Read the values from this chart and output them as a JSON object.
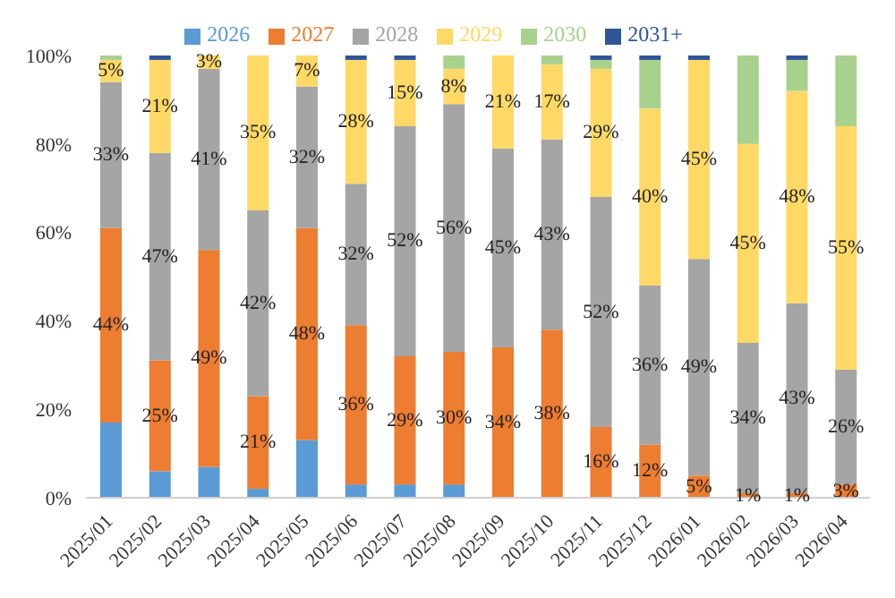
{
  "chart_data": {
    "type": "bar",
    "stacked": true,
    "categories": [
      "2025/01",
      "2025/02",
      "2025/03",
      "2025/04",
      "2025/05",
      "2025/06",
      "2025/07",
      "2025/08",
      "2025/09",
      "2025/10",
      "2025/11",
      "2025/12",
      "2026/01",
      "2026/02",
      "2026/03",
      "2026/04"
    ],
    "series": [
      {
        "name": "2026",
        "color": "#5b9bd5",
        "values": [
          17,
          6,
          7,
          2,
          13,
          3,
          3,
          3,
          0,
          0,
          0,
          0,
          0,
          0,
          0,
          0
        ],
        "value_labels": [
          null,
          null,
          null,
          null,
          null,
          null,
          null,
          null,
          null,
          null,
          null,
          null,
          null,
          null,
          null,
          null
        ]
      },
      {
        "name": "2027",
        "color": "#ed7d31",
        "values": [
          44,
          25,
          49,
          21,
          48,
          36,
          29,
          30,
          34,
          38,
          16,
          12,
          5,
          1,
          1,
          3
        ],
        "value_labels": [
          "44%",
          "25%",
          "49%",
          "21%",
          "48%",
          "36%",
          "29%",
          "30%",
          "34%",
          "38%",
          "16%",
          "12%",
          "5%",
          "1%",
          "1%",
          "3%"
        ]
      },
      {
        "name": "2028",
        "color": "#a5a5a5",
        "values": [
          33,
          47,
          41,
          42,
          32,
          32,
          52,
          56,
          45,
          43,
          52,
          36,
          49,
          34,
          43,
          26
        ],
        "value_labels": [
          "33%",
          "47%",
          "41%",
          "42%",
          "32%",
          "32%",
          "52%",
          "56%",
          "45%",
          "43%",
          "52%",
          "36%",
          "49%",
          "34%",
          "43%",
          "26%"
        ]
      },
      {
        "name": "2029",
        "color": "#ffd966",
        "values": [
          5,
          21,
          3,
          35,
          7,
          28,
          15,
          8,
          21,
          17,
          29,
          40,
          45,
          45,
          48,
          55
        ],
        "value_labels": [
          "5%",
          "21%",
          "3%",
          "35%",
          "7%",
          "28%",
          "15%",
          "8%",
          "21%",
          "17%",
          "29%",
          "40%",
          "45%",
          "45%",
          "48%",
          "55%"
        ]
      },
      {
        "name": "2030",
        "color": "#a9d18e",
        "values": [
          1,
          0,
          0,
          0,
          0,
          0,
          0,
          3,
          0,
          2,
          2,
          11,
          0,
          20,
          7,
          16
        ],
        "value_labels": [
          null,
          null,
          null,
          null,
          null,
          null,
          null,
          null,
          null,
          null,
          null,
          null,
          null,
          null,
          null,
          null
        ]
      },
      {
        "name": "2031+",
        "color": "#2f5597",
        "values": [
          0,
          1,
          0,
          0,
          0,
          1,
          1,
          0,
          0,
          0,
          1,
          1,
          1,
          0,
          1,
          0
        ],
        "value_labels": [
          null,
          null,
          null,
          null,
          null,
          null,
          null,
          null,
          null,
          null,
          null,
          null,
          null,
          null,
          null,
          null
        ]
      }
    ],
    "ylim": [
      0,
      100
    ],
    "yticks": [
      {
        "value": 0,
        "label": "0%"
      },
      {
        "value": 20,
        "label": "20%"
      },
      {
        "value": 40,
        "label": "40%"
      },
      {
        "value": 60,
        "label": "60%"
      },
      {
        "value": 80,
        "label": "80%"
      },
      {
        "value": 100,
        "label": "100%"
      }
    ],
    "grid": false,
    "legend": "top"
  }
}
